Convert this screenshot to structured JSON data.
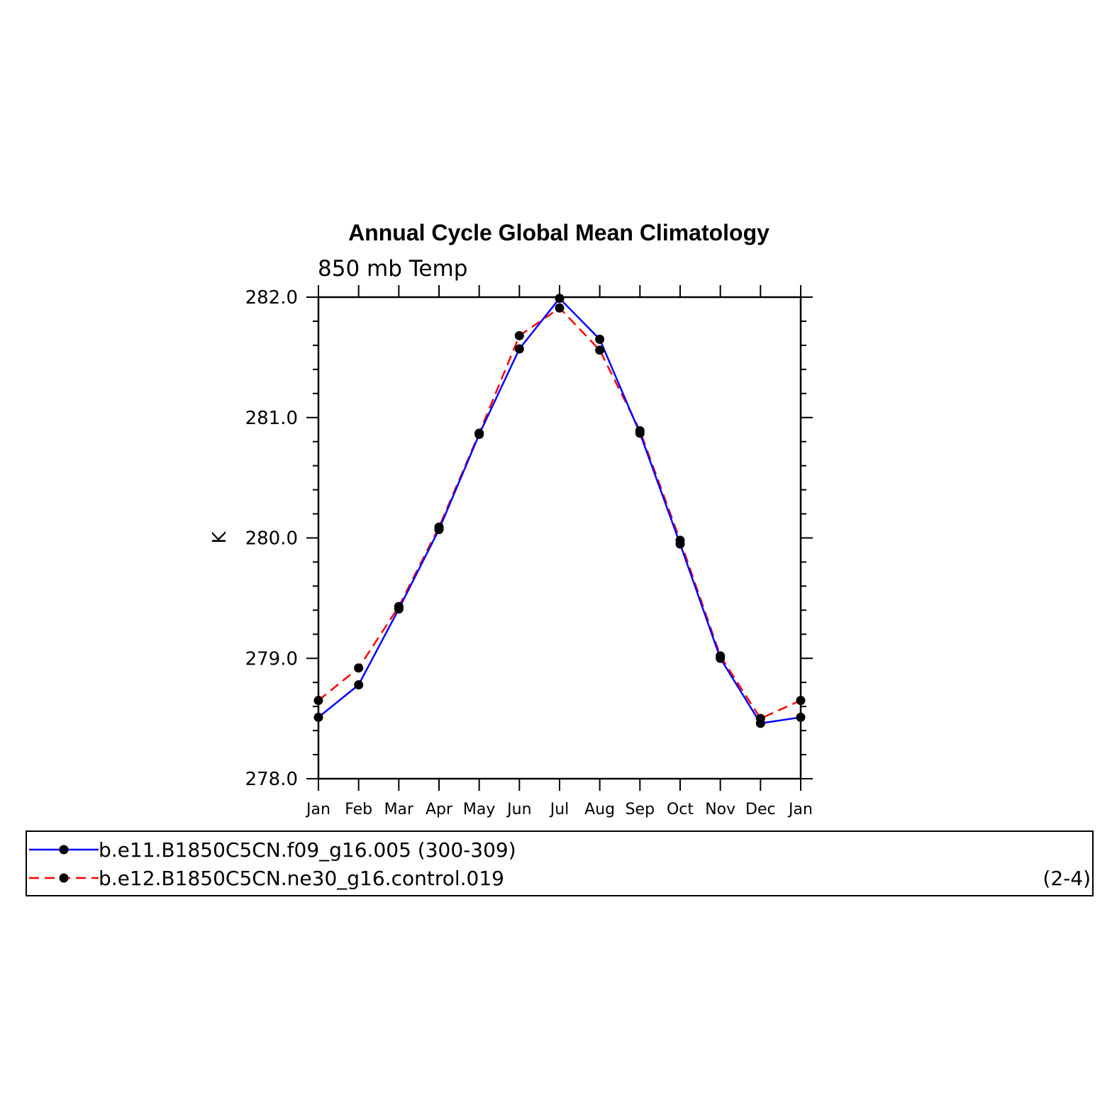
{
  "chart_data": {
    "type": "line",
    "title": "Annual Cycle Global Mean Climatology",
    "subtitle": "850 mb Temp",
    "ylabel": "K",
    "xlabel": "",
    "categories": [
      "Jan",
      "Feb",
      "Mar",
      "Apr",
      "May",
      "Jun",
      "Jul",
      "Aug",
      "Sep",
      "Oct",
      "Nov",
      "Dec",
      "Jan"
    ],
    "ylim": [
      278.0,
      282.0
    ],
    "yticks": [
      "278.0",
      "279.0",
      "280.0",
      "281.0",
      "282.0"
    ],
    "series": [
      {
        "name": "b.e11.B1850C5CN.f09_g16.005 (300-309)",
        "color": "#0000ff",
        "style": "solid",
        "marker": "dot",
        "values": [
          278.51,
          278.78,
          279.41,
          280.07,
          280.86,
          281.57,
          281.99,
          281.65,
          280.87,
          279.95,
          279.0,
          278.46,
          278.51
        ]
      },
      {
        "name": "b.e12.B1850C5CN.ne30_g16.control.019",
        "color": "#ff0000",
        "style": "dashed",
        "marker": "dot",
        "values": [
          278.65,
          278.92,
          279.43,
          280.09,
          280.87,
          281.68,
          281.91,
          281.56,
          280.89,
          279.98,
          279.02,
          278.5,
          278.65
        ]
      }
    ],
    "legend": {
      "placement": "bottom",
      "note": "(2-4)"
    }
  }
}
